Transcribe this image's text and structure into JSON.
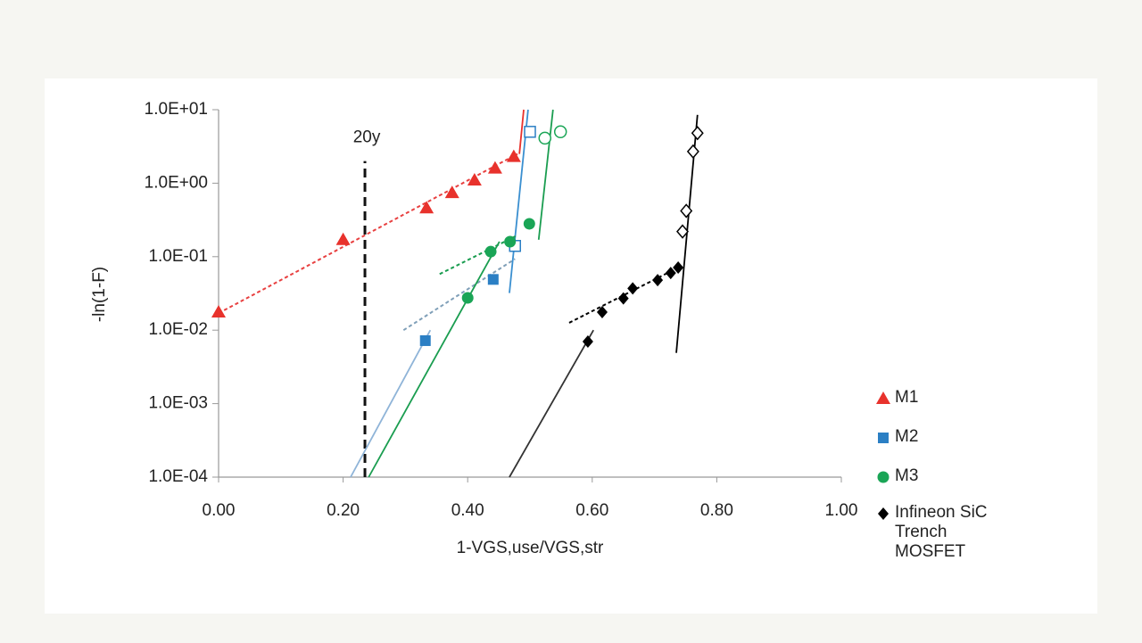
{
  "chart_data": {
    "type": "scatter",
    "x_label": "1-VGS,use/VGS,str",
    "y_label": "-ln(1-F)",
    "log_y": true,
    "xlim": [
      0,
      1
    ],
    "xticks": [
      {
        "value": 0,
        "label": "0.00"
      },
      {
        "value": 0.2,
        "label": "0.20"
      },
      {
        "value": 0.4,
        "label": "0.40"
      },
      {
        "value": 0.6,
        "label": "0.60"
      },
      {
        "value": 0.8,
        "label": "0.80"
      },
      {
        "value": 1,
        "label": "1.00"
      }
    ],
    "ylim": [
      0.0001,
      10
    ],
    "yticks": [
      {
        "value": 0.0001,
        "label": "1.0E-04"
      },
      {
        "value": 0.001,
        "label": "1.0E-03"
      },
      {
        "value": 0.01,
        "label": "1.0E-02"
      },
      {
        "value": 0.1,
        "label": "1.0E-01"
      },
      {
        "value": 1,
        "label": "1.0E+00"
      },
      {
        "value": 10,
        "label": "1.0E+01"
      }
    ],
    "annotations": [
      {
        "text": "20y",
        "x": 0.235,
        "y": [
          0.0001,
          2
        ]
      }
    ],
    "series": [
      {
        "name": "M1",
        "marker": "triangle",
        "color": "#e8322c",
        "x": [
          0,
          0.2,
          0.334,
          0.375,
          0.411,
          0.444,
          0.474
        ],
        "values": [
          0.0176,
          0.17,
          0.46,
          0.74,
          1.1,
          1.6,
          2.3
        ],
        "open": [
          false,
          false,
          false,
          false,
          false,
          false,
          false
        ],
        "fits": [
          {
            "x": [
              0,
              0.48
            ],
            "y": [
              0.017,
              2.5
            ],
            "dashed": true,
            "color": "#e84040"
          },
          {
            "x": [
              0.483,
              0.49
            ],
            "y": [
              2.5,
              10
            ],
            "dashed": false,
            "color": "#e8322c"
          }
        ]
      },
      {
        "name": "M2",
        "marker": "square",
        "color": "#2b7fc4",
        "x": [
          0.332,
          0.441,
          0.476,
          0.5
        ],
        "values": [
          0.0072,
          0.049,
          0.14,
          5
        ],
        "open": [
          false,
          false,
          true,
          true
        ],
        "fits": [
          {
            "x": [
              0.297,
              0.476
            ],
            "y": [
              0.01,
              0.093
            ],
            "dashed": true,
            "color": "#7f9fb8"
          },
          {
            "x": [
              0.212,
              0.34
            ],
            "y": [
              0.0001,
              0.01
            ],
            "dashed": false,
            "color": "#8fb4d8"
          },
          {
            "x": [
              0.467,
              0.497
            ],
            "y": [
              0.032,
              10
            ],
            "dashed": false,
            "color": "#3a8fd0"
          }
        ]
      },
      {
        "name": "M3",
        "marker": "circle",
        "color": "#1aa556",
        "x": [
          0.4,
          0.437,
          0.468,
          0.499,
          0.524,
          0.549
        ],
        "values": [
          0.0275,
          0.117,
          0.16,
          0.28,
          4.1,
          5
        ],
        "open": [
          false,
          false,
          false,
          false,
          true,
          true
        ],
        "fits": [
          {
            "x": [
              0.355,
              0.477
            ],
            "y": [
              0.058,
              0.19
            ],
            "dashed": true,
            "color": "#1a9d50"
          },
          {
            "x": [
              0.241,
              0.451
            ],
            "y": [
              0.0001,
              0.16
            ],
            "dashed": false,
            "color": "#1a9d50"
          },
          {
            "x": [
              0.514,
              0.537
            ],
            "y": [
              0.17,
              10
            ],
            "dashed": false,
            "color": "#1a9d50"
          }
        ]
      },
      {
        "name": "Infineon SiC Trench MOSFET",
        "marker": "diamond",
        "color": "#000000",
        "x": [
          0.593,
          0.616,
          0.65,
          0.665,
          0.705,
          0.726,
          0.738,
          0.745,
          0.751,
          0.762,
          0.769
        ],
        "values": [
          0.007,
          0.0176,
          0.027,
          0.037,
          0.048,
          0.06,
          0.071,
          0.22,
          0.42,
          2.7,
          4.8
        ],
        "open": [
          false,
          false,
          false,
          false,
          false,
          false,
          false,
          true,
          true,
          true,
          true
        ],
        "fits": [
          {
            "x": [
              0.563,
              0.738
            ],
            "y": [
              0.0126,
              0.071
            ],
            "dashed": true,
            "color": "#000000"
          },
          {
            "x": [
              0.467,
              0.602
            ],
            "y": [
              0.0001,
              0.01
            ],
            "dashed": false,
            "color": "#333333"
          },
          {
            "x": [
              0.735,
              0.769
            ],
            "y": [
              0.0049,
              8.5
            ],
            "dashed": false,
            "color": "#000000"
          }
        ]
      }
    ]
  }
}
